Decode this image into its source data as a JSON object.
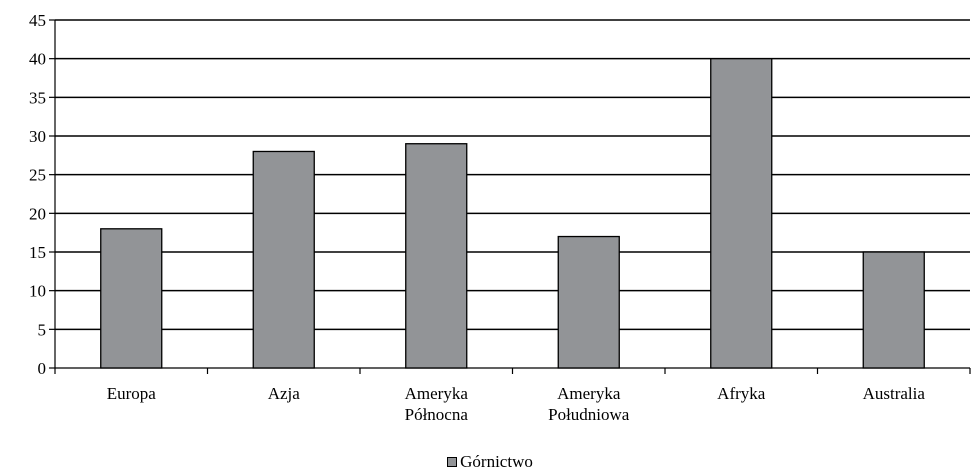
{
  "chart_data": {
    "type": "bar",
    "title": "",
    "xlabel": "",
    "ylabel": "",
    "categories": [
      [
        "Europa"
      ],
      [
        "Azja"
      ],
      [
        "Ameryka",
        "Północna"
      ],
      [
        "Ameryka",
        "Południowa"
      ],
      [
        "Afryka"
      ],
      [
        "Australia"
      ]
    ],
    "series": [
      {
        "name": "Górnictwo",
        "values": [
          18,
          28,
          29,
          17,
          40,
          15
        ],
        "color": "#929497"
      }
    ],
    "ylim": [
      0,
      45
    ],
    "ytick_step": 5,
    "yticks": [
      "0",
      "5",
      "10",
      "15",
      "20",
      "25",
      "30",
      "35",
      "40",
      "45"
    ],
    "grid": true,
    "legend_position": "bottom"
  }
}
